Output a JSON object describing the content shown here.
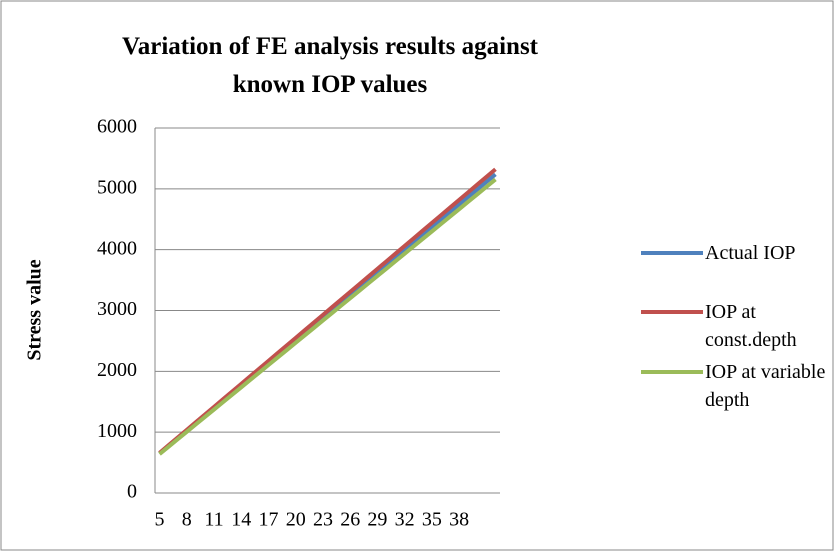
{
  "chart_data": {
    "type": "line",
    "title": "Variation of FE analysis results against known IOP values",
    "y_label": "Stress value",
    "categories": [
      5,
      null,
      null,
      8,
      null,
      null,
      11,
      null,
      null,
      14,
      null,
      null,
      17,
      null,
      null,
      20,
      null,
      null,
      23,
      null,
      null,
      26,
      null,
      null,
      29,
      null,
      null,
      32,
      null,
      null,
      35,
      null,
      null,
      38,
      null,
      null,
      null,
      null
    ],
    "series": [
      {
        "name": "Actual IOP",
        "color": "#4f81bd",
        "values": [
          650,
          774,
          898,
          1022,
          1146,
          1270,
          1394,
          1518,
          1642,
          1766,
          1890,
          2014,
          2138,
          2262,
          2386,
          2510,
          2634,
          2758,
          2882,
          3006,
          3130,
          3254,
          3378,
          3502,
          3626,
          3750,
          3874,
          3998,
          4122,
          4246,
          4370,
          4494,
          4618,
          4742,
          4866,
          4990,
          5114,
          5238
        ]
      },
      {
        "name": "IOP at const.depth",
        "color": "#c0504d",
        "values": [
          660,
          786,
          912,
          1038,
          1164,
          1290,
          1416,
          1542,
          1668,
          1794,
          1920,
          2046,
          2172,
          2298,
          2424,
          2550,
          2676,
          2802,
          2928,
          3054,
          3180,
          3306,
          3432,
          3558,
          3684,
          3810,
          3936,
          4062,
          4188,
          4314,
          4440,
          4566,
          4692,
          4818,
          4944,
          5070,
          5196,
          5322
        ]
      },
      {
        "name": "IOP at variable depth",
        "color": "#9bbb59",
        "values": [
          640,
          762,
          884,
          1006,
          1128,
          1250,
          1372,
          1494,
          1616,
          1738,
          1860,
          1982,
          2104,
          2226,
          2348,
          2470,
          2592,
          2714,
          2836,
          2958,
          3080,
          3202,
          3324,
          3446,
          3568,
          3690,
          3812,
          3934,
          4056,
          4178,
          4300,
          4422,
          4544,
          4666,
          4788,
          4910,
          5032,
          5154
        ]
      }
    ],
    "ylim": [
      0,
      6000
    ],
    "yticks": [
      0,
      1000,
      2000,
      3000,
      4000,
      5000,
      6000
    ],
    "grid": true
  }
}
